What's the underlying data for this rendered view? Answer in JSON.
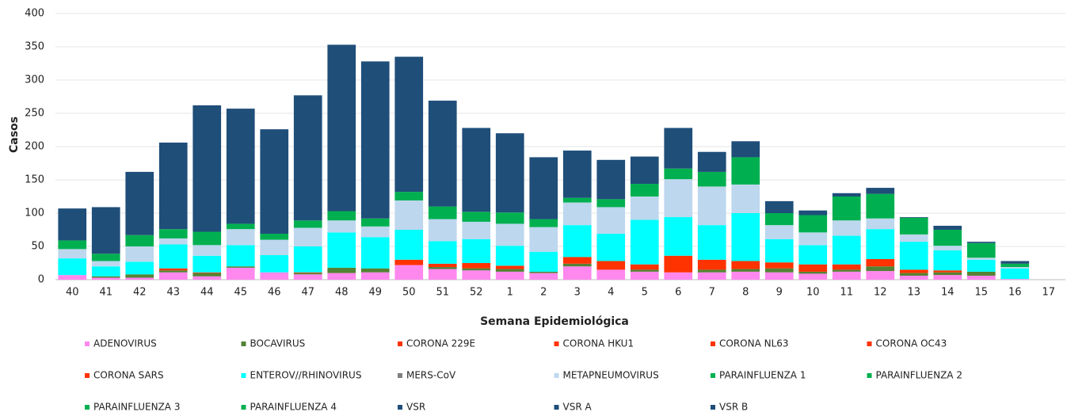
{
  "chart_data": {
    "type": "stacked_bar",
    "y_label": "Casos",
    "x_label": "Semana Epidemiológica",
    "categories": [
      "40",
      "41",
      "42",
      "43",
      "44",
      "45",
      "46",
      "47",
      "48",
      "49",
      "50",
      "51",
      "52",
      "1",
      "2",
      "3",
      "4",
      "5",
      "6",
      "7",
      "8",
      "9",
      "10",
      "11",
      "12",
      "13",
      "14",
      "15",
      "16",
      "17"
    ],
    "ylim": [
      0,
      400
    ],
    "yticks": [
      0,
      50,
      100,
      150,
      200,
      250,
      300,
      350,
      400
    ],
    "grid": true,
    "series": [
      {
        "name": "ADENOVIRUS",
        "color": "#ff88ee",
        "values": [
          7,
          3,
          3,
          11,
          5,
          18,
          11,
          8,
          10,
          11,
          22,
          16,
          14,
          12,
          10,
          20,
          15,
          12,
          11,
          11,
          12,
          11,
          9,
          12,
          13,
          6,
          7,
          6,
          1,
          0
        ]
      },
      {
        "name": "BOCAVIRUS",
        "color": "#548235",
        "values": [
          0,
          2,
          5,
          3,
          5,
          2,
          0,
          2,
          8,
          6,
          0,
          3,
          3,
          4,
          2,
          4,
          0,
          3,
          0,
          4,
          4,
          6,
          3,
          3,
          7,
          4,
          4,
          6,
          0,
          0
        ]
      },
      {
        "name": "CORONA 229E",
        "color": "#ff3300",
        "values": [
          0,
          0,
          0,
          0,
          0,
          0,
          0,
          0,
          0,
          0,
          0,
          0,
          0,
          0,
          0,
          0,
          0,
          0,
          0,
          0,
          0,
          0,
          0,
          0,
          0,
          0,
          0,
          0,
          0,
          0
        ]
      },
      {
        "name": "CORONA HKU1",
        "color": "#ff3300",
        "values": [
          0,
          0,
          0,
          0,
          0,
          0,
          0,
          0,
          0,
          0,
          0,
          0,
          0,
          0,
          0,
          0,
          0,
          0,
          0,
          0,
          0,
          0,
          0,
          0,
          0,
          0,
          0,
          0,
          0,
          0
        ]
      },
      {
        "name": "CORONA NL63",
        "color": "#ff3300",
        "values": [
          0,
          0,
          0,
          3,
          1,
          0,
          0,
          1,
          0,
          0,
          8,
          5,
          8,
          5,
          0,
          10,
          13,
          8,
          25,
          15,
          12,
          9,
          11,
          8,
          11,
          5,
          3,
          0,
          0,
          0
        ]
      },
      {
        "name": "CORONA OC43",
        "color": "#ff3300",
        "values": [
          0,
          0,
          0,
          0,
          0,
          0,
          0,
          0,
          0,
          0,
          0,
          0,
          0,
          0,
          0,
          0,
          0,
          0,
          0,
          0,
          0,
          0,
          0,
          0,
          0,
          0,
          0,
          0,
          0,
          0
        ]
      },
      {
        "name": "CORONA SARS",
        "color": "#ff3300",
        "values": [
          0,
          0,
          0,
          0,
          0,
          0,
          0,
          0,
          0,
          0,
          0,
          0,
          0,
          0,
          0,
          0,
          0,
          0,
          0,
          0,
          0,
          0,
          0,
          0,
          0,
          0,
          0,
          0,
          0,
          0
        ]
      },
      {
        "name": "ENTEROV//RHINOVIRUS",
        "color": "#00ffff",
        "values": [
          25,
          15,
          19,
          36,
          25,
          32,
          26,
          39,
          53,
          47,
          45,
          34,
          36,
          30,
          30,
          48,
          41,
          67,
          58,
          52,
          72,
          35,
          29,
          43,
          45,
          42,
          30,
          18,
          16,
          0
        ]
      },
      {
        "name": "MERS-CoV",
        "color": "#7f7f7f",
        "values": [
          0,
          0,
          0,
          0,
          0,
          0,
          0,
          0,
          0,
          0,
          0,
          0,
          0,
          0,
          0,
          0,
          0,
          0,
          0,
          0,
          0,
          0,
          0,
          0,
          0,
          0,
          0,
          0,
          0,
          0
        ]
      },
      {
        "name": "METAPNEUMOVIRUS",
        "color": "#bdd7ee",
        "values": [
          14,
          8,
          23,
          9,
          16,
          24,
          23,
          28,
          18,
          16,
          44,
          33,
          26,
          33,
          37,
          34,
          40,
          35,
          57,
          58,
          43,
          21,
          19,
          23,
          16,
          11,
          7,
          3,
          2,
          0
        ]
      },
      {
        "name": "PARAINFLUENZA 1",
        "color": "#00b050",
        "values": [
          0,
          0,
          0,
          0,
          0,
          0,
          0,
          0,
          0,
          0,
          0,
          0,
          0,
          0,
          0,
          0,
          0,
          0,
          0,
          0,
          0,
          0,
          0,
          0,
          0,
          0,
          0,
          0,
          0,
          0
        ]
      },
      {
        "name": "PARAINFLUENZA 2",
        "color": "#00b050",
        "values": [
          0,
          0,
          0,
          0,
          0,
          0,
          0,
          0,
          0,
          0,
          0,
          0,
          0,
          0,
          0,
          0,
          0,
          0,
          0,
          0,
          0,
          0,
          0,
          0,
          0,
          0,
          0,
          0,
          0,
          0
        ]
      },
      {
        "name": "PARAINFLUENZA 3",
        "color": "#00b050",
        "values": [
          13,
          11,
          17,
          14,
          20,
          8,
          9,
          11,
          14,
          12,
          13,
          19,
          15,
          17,
          12,
          7,
          12,
          19,
          16,
          22,
          41,
          18,
          26,
          36,
          37,
          25,
          24,
          22,
          5,
          0
        ]
      },
      {
        "name": "PARAINFLUENZA 4",
        "color": "#00b050",
        "values": [
          0,
          0,
          0,
          0,
          0,
          0,
          0,
          0,
          0,
          0,
          0,
          0,
          0,
          0,
          0,
          0,
          0,
          0,
          0,
          0,
          0,
          0,
          0,
          0,
          0,
          0,
          0,
          0,
          0,
          0
        ]
      },
      {
        "name": "VSR",
        "color": "#1f4e79",
        "values": [
          48,
          70,
          95,
          130,
          190,
          173,
          157,
          188,
          250,
          236,
          203,
          159,
          126,
          119,
          93,
          71,
          59,
          41,
          61,
          30,
          24,
          18,
          7,
          5,
          9,
          1,
          6,
          2,
          4,
          0
        ]
      },
      {
        "name": "VSR A",
        "color": "#1f4e79",
        "values": [
          0,
          0,
          0,
          0,
          0,
          0,
          0,
          0,
          0,
          0,
          0,
          0,
          0,
          0,
          0,
          0,
          0,
          0,
          0,
          0,
          0,
          0,
          0,
          0,
          0,
          0,
          0,
          0,
          0,
          0
        ]
      },
      {
        "name": "VSR B",
        "color": "#1f4e79",
        "values": [
          0,
          0,
          0,
          0,
          0,
          0,
          0,
          0,
          0,
          0,
          0,
          0,
          0,
          0,
          0,
          0,
          0,
          0,
          0,
          0,
          0,
          0,
          0,
          0,
          0,
          0,
          0,
          0,
          0,
          0
        ]
      }
    ]
  }
}
